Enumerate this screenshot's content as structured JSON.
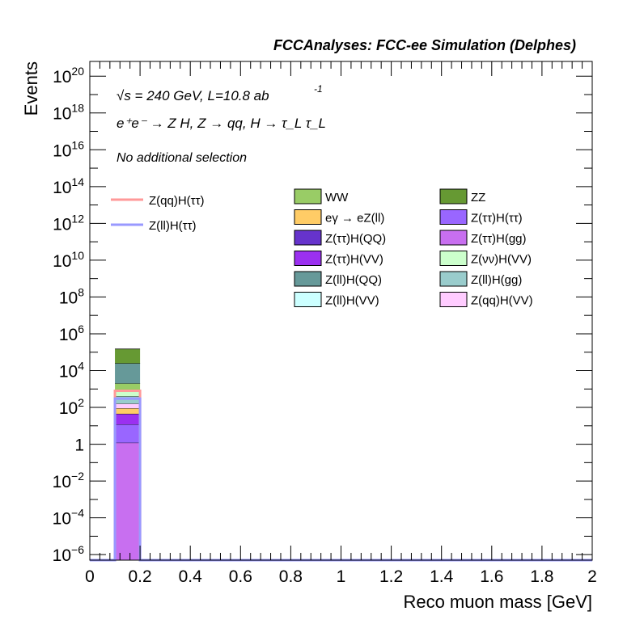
{
  "header": "FCCAnalyses: FCC-ee Simulation (Delphes)",
  "annotations": {
    "energy": "√s = 240 GeV, L=10.8 ab",
    "energy_exp": "-1",
    "process": "e⁺e⁻ → Z H, Z → qq, H → τ_L τ_L",
    "selection": "No additional selection"
  },
  "chart_data": {
    "type": "bar",
    "stacked": true,
    "xlabel": "Reco muon mass [GeV]",
    "ylabel": "Events",
    "xlim": [
      0,
      2
    ],
    "ylim_log10": [
      -6.3,
      20.8
    ],
    "log_y": true,
    "grid": false,
    "legend_placement": "top-right",
    "x_ticks": [
      "0",
      "0.2",
      "0.4",
      "0.6",
      "0.8",
      "1",
      "1.2",
      "1.4",
      "1.6",
      "1.8",
      "2"
    ],
    "y_ticks": [
      {
        "base": "10",
        "exp": "−6",
        "log": -6
      },
      {
        "base": "10",
        "exp": "−4",
        "log": -4
      },
      {
        "base": "10",
        "exp": "−2",
        "log": -2
      },
      {
        "base": "1",
        "exp": "",
        "log": 0
      },
      {
        "base": "10",
        "exp": "2",
        "log": 2
      },
      {
        "base": "10",
        "exp": "4",
        "log": 4
      },
      {
        "base": "10",
        "exp": "6",
        "log": 6
      },
      {
        "base": "10",
        "exp": "8",
        "log": 8
      },
      {
        "base": "10",
        "exp": "10",
        "log": 10
      },
      {
        "base": "10",
        "exp": "12",
        "log": 12
      },
      {
        "base": "10",
        "exp": "14",
        "log": 14
      },
      {
        "base": "10",
        "exp": "16",
        "log": 16
      },
      {
        "base": "10",
        "exp": "18",
        "log": 18
      },
      {
        "base": "10",
        "exp": "20",
        "log": 20
      }
    ],
    "bin": [
      0.1,
      0.2
    ],
    "stack": [
      {
        "name": "Z(ττ)H(gg)",
        "color": "#c86ff0",
        "top": 1.2
      },
      {
        "name": "Z(ττ)H(ττ)",
        "color": "#9966ff",
        "top": 12
      },
      {
        "name": "Z(ττ)H(VV)",
        "color": "#9b30f0",
        "top": 45
      },
      {
        "name": "eγ → eZ(ll)",
        "color": "#ffcc66",
        "top": 90
      },
      {
        "name": "Z(qq)H(VV)",
        "color": "#ffccff",
        "top": 160
      },
      {
        "name": "Z(ll)H(gg)",
        "color": "#99cccc",
        "top": 400
      },
      {
        "name": "Z(νν)H(VV)",
        "color": "#ccffcc",
        "top": 900
      },
      {
        "name": "WW",
        "color": "#99cc66",
        "top": 2000
      },
      {
        "name": "Z(ll)H(QQ)",
        "color": "#669999",
        "top": 25000
      },
      {
        "name": "ZZ",
        "color": "#669933",
        "top": 150000
      }
    ],
    "signals": [
      {
        "name": "Z(qq)H(ττ)",
        "color": "#ff9999",
        "value": 800
      },
      {
        "name": "Z(ll)H(ττ)",
        "color": "#9999ff",
        "value": 300
      }
    ],
    "legend_bkg": [
      {
        "name": "WW",
        "color": "#99cc66"
      },
      {
        "name": "ZZ",
        "color": "#669933"
      },
      {
        "name": "eγ → eZ(ll)",
        "color": "#ffcc66"
      },
      {
        "name": "Z(ττ)H(ττ)",
        "color": "#9966ff"
      },
      {
        "name": "Z(ττ)H(QQ)",
        "color": "#6633cc"
      },
      {
        "name": "Z(ττ)H(gg)",
        "color": "#c86ff0"
      },
      {
        "name": "Z(ττ)H(VV)",
        "color": "#9b30f0"
      },
      {
        "name": "Z(νν)H(VV)",
        "color": "#ccffcc"
      },
      {
        "name": "Z(ll)H(QQ)",
        "color": "#669999"
      },
      {
        "name": "Z(ll)H(gg)",
        "color": "#99cccc"
      },
      {
        "name": "Z(ll)H(VV)",
        "color": "#ccffff"
      },
      {
        "name": "Z(qq)H(VV)",
        "color": "#ffccff"
      }
    ]
  }
}
